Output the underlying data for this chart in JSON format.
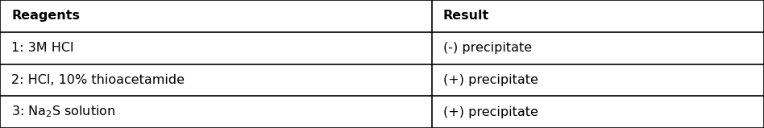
{
  "headers": [
    "Reagents",
    "Result"
  ],
  "rows": [
    [
      "1: 3M HCl",
      "(-) precipitate"
    ],
    [
      "2: HCl, 10% thioacetamide",
      "(+) precipitate"
    ],
    [
      "3: Na₂S solution",
      "(+) precipitate"
    ]
  ],
  "col_split": 0.565,
  "header_fontsize": 11.5,
  "body_fontsize": 11.5,
  "background_color": "#ffffff",
  "border_color": "#000000",
  "figwidth": 9.48,
  "figheight": 1.59,
  "dpi": 100
}
